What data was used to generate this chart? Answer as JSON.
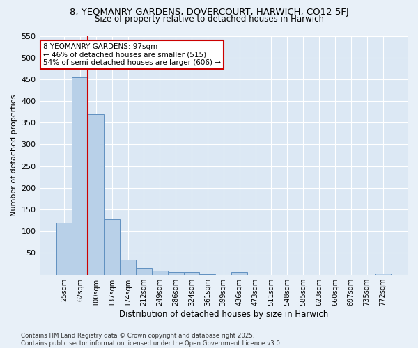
{
  "title": "8, YEOMANRY GARDENS, DOVERCOURT, HARWICH, CO12 5FJ",
  "subtitle": "Size of property relative to detached houses in Harwich",
  "xlabel": "Distribution of detached houses by size in Harwich",
  "ylabel": "Number of detached properties",
  "footer": "Contains HM Land Registry data © Crown copyright and database right 2025.\nContains public sector information licensed under the Open Government Licence v3.0.",
  "categories": [
    "25sqm",
    "62sqm",
    "100sqm",
    "137sqm",
    "174sqm",
    "212sqm",
    "249sqm",
    "286sqm",
    "324sqm",
    "361sqm",
    "399sqm",
    "436sqm",
    "473sqm",
    "511sqm",
    "548sqm",
    "585sqm",
    "623sqm",
    "660sqm",
    "697sqm",
    "735sqm",
    "772sqm"
  ],
  "values": [
    120,
    455,
    370,
    128,
    35,
    15,
    9,
    5,
    5,
    1,
    0,
    5,
    0,
    0,
    0,
    0,
    0,
    0,
    0,
    0,
    3
  ],
  "bar_color": "#b8d0e8",
  "bar_edge_color": "#6090c0",
  "vline_x": 1.5,
  "vline_color": "#cc0000",
  "annotation_text": "8 YEOMANRY GARDENS: 97sqm\n← 46% of detached houses are smaller (515)\n54% of semi-detached houses are larger (606) →",
  "annotation_box_color": "#ffffff",
  "annotation_box_edge": "#cc0000",
  "bg_color": "#e8f0f8",
  "plot_bg_color": "#dce8f4",
  "grid_color": "#ffffff",
  "ylim": [
    0,
    550
  ],
  "yticks": [
    0,
    50,
    100,
    150,
    200,
    250,
    300,
    350,
    400,
    450,
    500,
    550
  ]
}
